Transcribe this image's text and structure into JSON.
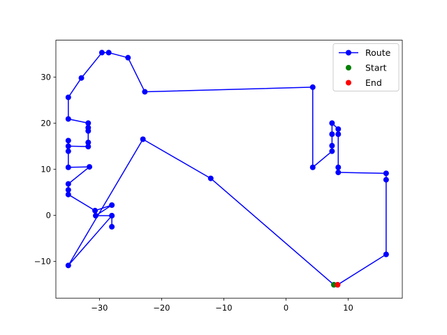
{
  "chart_data": {
    "type": "line",
    "title": "",
    "xlabel": "",
    "ylabel": "",
    "xlim": [
      -37,
      18.7
    ],
    "ylim": [
      -18,
      38
    ],
    "xticks": [
      -30,
      -20,
      -10,
      0,
      10
    ],
    "yticks": [
      -10,
      0,
      10,
      20,
      30
    ],
    "grid": false,
    "legend": {
      "placement": "upper right",
      "entries": [
        {
          "label": "Route",
          "marker": "circle",
          "line": true,
          "color": "#0000ff"
        },
        {
          "label": "Start",
          "marker": "circle",
          "line": false,
          "color": "#008000"
        },
        {
          "label": "End",
          "marker": "circle",
          "line": false,
          "color": "#ff0000"
        }
      ]
    },
    "series": [
      {
        "name": "Route",
        "color": "#0000ff",
        "points": [
          [
            8.3,
            -15.1
          ],
          [
            16.1,
            -8.5
          ],
          [
            16.1,
            7.7
          ],
          [
            16.1,
            9.1
          ],
          [
            8.4,
            9.3
          ],
          [
            8.4,
            10.4
          ],
          [
            8.4,
            17.6
          ],
          [
            8.4,
            18.7
          ],
          [
            7.4,
            20.0
          ],
          [
            7.4,
            17.6
          ],
          [
            7.4,
            15.1
          ],
          [
            7.4,
            13.9
          ],
          [
            4.3,
            10.4
          ],
          [
            4.3,
            27.8
          ],
          [
            -22.7,
            26.8
          ],
          [
            -25.4,
            34.2
          ],
          [
            -28.5,
            35.3
          ],
          [
            -29.6,
            35.3
          ],
          [
            -32.9,
            29.8
          ],
          [
            -35.0,
            25.6
          ],
          [
            -35.0,
            20.9
          ],
          [
            -31.8,
            20.0
          ],
          [
            -31.8,
            19.0
          ],
          [
            -31.8,
            18.3
          ],
          [
            -31.8,
            15.8
          ],
          [
            -31.8,
            14.9
          ],
          [
            -35.0,
            15.0
          ],
          [
            -35.0,
            16.2
          ],
          [
            -35.0,
            13.9
          ],
          [
            -35.0,
            10.4
          ],
          [
            -31.6,
            10.5
          ],
          [
            -35.0,
            6.8
          ],
          [
            -35.0,
            5.5
          ],
          [
            -35.0,
            4.5
          ],
          [
            -30.7,
            1.0
          ],
          [
            -28.0,
            2.2
          ],
          [
            -30.6,
            -0.1
          ],
          [
            -28.0,
            -0.1
          ],
          [
            -28.0,
            -2.5
          ],
          [
            -28.0,
            -0.1
          ],
          [
            -35.0,
            -10.9
          ],
          [
            -23.0,
            16.5
          ],
          [
            -12.1,
            8.0
          ],
          [
            7.7,
            -15.1
          ]
        ]
      },
      {
        "name": "Start",
        "color": "#008000",
        "points": [
          [
            7.7,
            -15.1
          ]
        ]
      },
      {
        "name": "End",
        "color": "#ff0000",
        "points": [
          [
            8.3,
            -15.1
          ]
        ]
      }
    ]
  }
}
